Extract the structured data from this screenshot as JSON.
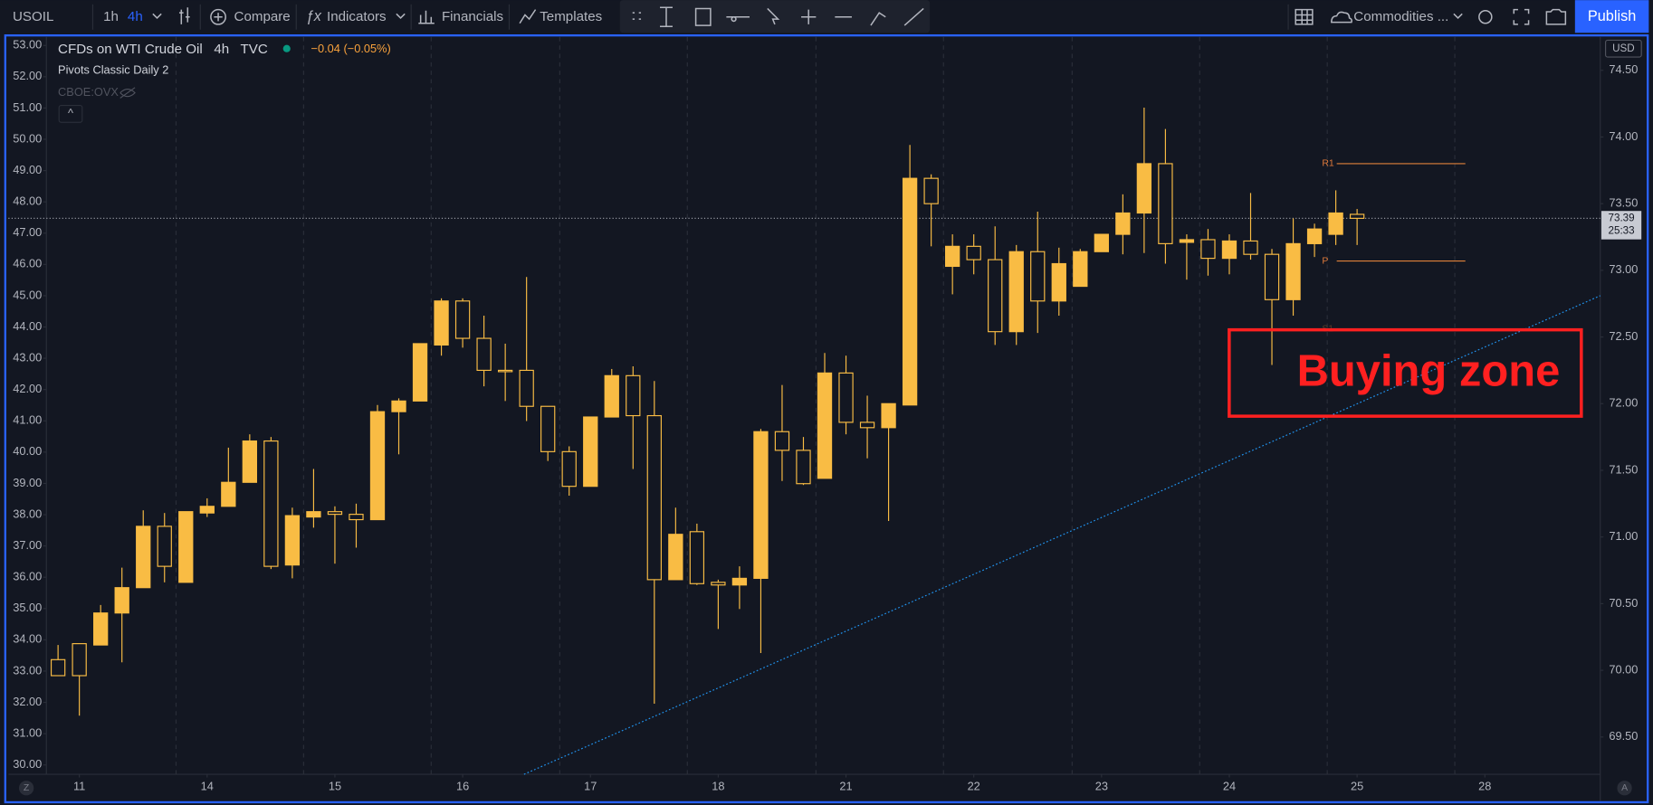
{
  "toolbar": {
    "symbol": "USOIL",
    "intervals": [
      "1h",
      "4h"
    ],
    "buttons": [
      "Compare",
      "Indicators",
      "Financials",
      "Templates"
    ],
    "watchlist": "Commodities ...",
    "publish": "Publish"
  },
  "controls": {
    "left_axis_button": "Z",
    "right_axis_button": "A",
    "currency": "USD",
    "collapse": "^"
  },
  "chart_data": {
    "type": "candlestick",
    "title": "CFDs on WTI Crude Oil",
    "interval": "4h",
    "source": "TVC",
    "change": "−0.04 (−0.05%)",
    "indicator": "Pivots Classic Daily 2",
    "overlay_symbol": "CBOE:OVX",
    "color": "#f9bc44",
    "x": [
      0,
      1,
      2,
      3,
      4,
      5,
      6,
      7,
      8,
      9,
      10,
      11,
      12,
      13,
      14,
      15,
      16,
      17,
      18,
      19,
      20,
      21,
      22,
      23,
      24,
      25,
      26,
      27,
      28,
      29,
      30,
      31,
      32,
      33,
      34,
      35,
      36,
      37,
      38,
      39,
      40,
      41,
      42,
      43,
      44,
      45,
      46,
      47,
      48,
      49,
      50,
      51,
      52,
      53,
      54,
      55,
      56,
      57,
      58,
      59,
      60,
      61
    ],
    "open": [
      70.08,
      70.2,
      70.19,
      70.43,
      70.62,
      71.08,
      70.66,
      71.18,
      71.23,
      71.41,
      71.72,
      70.79,
      71.15,
      71.19,
      71.17,
      71.13,
      71.94,
      72.02,
      72.44,
      72.77,
      72.49,
      72.25,
      72.25,
      71.98,
      71.64,
      71.38,
      71.9,
      72.21,
      71.91,
      70.68,
      71.04,
      70.66,
      70.64,
      70.69,
      71.79,
      71.65,
      71.44,
      72.23,
      71.86,
      71.82,
      71.99,
      73.69,
      73.03,
      73.18,
      73.08,
      72.54,
      73.14,
      72.77,
      72.88,
      73.14,
      73.27,
      73.43,
      73.8,
      73.21,
      73.23,
      73.09,
      73.22,
      73.12,
      72.78,
      73.2,
      73.27,
      73.42
    ],
    "high": [
      70.19,
      70.2,
      70.49,
      70.77,
      71.2,
      71.18,
      71.19,
      71.29,
      71.67,
      71.77,
      71.75,
      71.22,
      71.51,
      71.23,
      71.25,
      71.99,
      72.04,
      72.45,
      72.79,
      72.79,
      72.66,
      72.45,
      72.95,
      71.98,
      71.68,
      71.9,
      72.26,
      72.28,
      72.17,
      71.22,
      71.1,
      70.68,
      70.78,
      71.81,
      72.14,
      71.75,
      72.38,
      72.36,
      72.06,
      72.0,
      73.94,
      73.72,
      73.27,
      73.27,
      73.33,
      73.19,
      73.44,
      73.17,
      73.16,
      73.27,
      73.57,
      74.22,
      74.06,
      73.27,
      73.31,
      73.27,
      73.58,
      73.16,
      73.39,
      73.35,
      73.6,
      73.46
    ],
    "low": [
      69.96,
      69.66,
      70.19,
      70.06,
      70.62,
      70.66,
      70.66,
      71.15,
      71.23,
      71.41,
      70.76,
      70.69,
      71.07,
      70.8,
      70.92,
      71.13,
      71.62,
      72.02,
      72.36,
      72.42,
      72.13,
      72.02,
      71.87,
      71.57,
      71.31,
      71.38,
      71.9,
      71.51,
      69.75,
      70.68,
      70.64,
      70.31,
      70.46,
      70.13,
      71.42,
      71.39,
      71.44,
      71.77,
      71.59,
      71.12,
      71.99,
      73.18,
      72.82,
      72.97,
      72.44,
      72.44,
      72.53,
      72.66,
      72.88,
      73.14,
      73.12,
      73.13,
      73.05,
      72.93,
      72.96,
      72.97,
      73.08,
      72.29,
      72.66,
      73.1,
      73.19,
      73.19
    ],
    "close": [
      69.96,
      69.96,
      70.43,
      70.62,
      71.08,
      70.78,
      71.19,
      71.23,
      71.41,
      71.72,
      70.78,
      71.16,
      71.19,
      71.17,
      71.13,
      71.94,
      72.02,
      72.45,
      72.77,
      72.49,
      72.25,
      72.24,
      71.98,
      71.64,
      71.38,
      71.9,
      72.21,
      71.91,
      70.68,
      71.02,
      70.65,
      70.64,
      70.69,
      71.79,
      71.65,
      71.4,
      72.23,
      71.86,
      71.82,
      72.0,
      73.69,
      73.5,
      73.18,
      73.08,
      72.54,
      73.14,
      72.77,
      73.05,
      73.14,
      73.27,
      73.43,
      73.8,
      73.2,
      73.23,
      73.09,
      73.22,
      73.12,
      72.78,
      73.2,
      73.31,
      73.43,
      73.39
    ],
    "xlim": [
      -2.33,
      72.42
    ],
    "xticks": [
      {
        "value": 1,
        "label": "11"
      },
      {
        "value": 7,
        "label": "14"
      },
      {
        "value": 13,
        "label": "15"
      },
      {
        "value": 19,
        "label": "16"
      },
      {
        "value": 25,
        "label": "17"
      },
      {
        "value": 31,
        "label": "18"
      },
      {
        "value": 37,
        "label": "21"
      },
      {
        "value": 43,
        "label": "22"
      },
      {
        "value": 49,
        "label": "23"
      },
      {
        "value": 55,
        "label": "24"
      },
      {
        "value": 61,
        "label": "25"
      },
      {
        "value": 67,
        "label": "28"
      }
    ],
    "ylim": [
      69.22,
      74.75
    ],
    "yticks": [
      {
        "value": 74.5,
        "label": "74.50"
      },
      {
        "value": 74,
        "label": "74.00"
      },
      {
        "value": 73.5,
        "label": "73.50"
      },
      {
        "value": 73,
        "label": "73.00"
      },
      {
        "value": 72.5,
        "label": "72.50"
      },
      {
        "value": 72,
        "label": "72.00"
      },
      {
        "value": 71.5,
        "label": "71.50"
      },
      {
        "value": 71,
        "label": "71.00"
      },
      {
        "value": 70.5,
        "label": "70.50"
      },
      {
        "value": 70,
        "label": "70.00"
      },
      {
        "value": 69.5,
        "label": "69.50"
      }
    ],
    "y2lim": [
      29.7,
      53.27
    ],
    "y2ticks": [
      {
        "value": 53,
        "label": "53.00"
      },
      {
        "value": 52,
        "label": "52.00"
      },
      {
        "value": 51,
        "label": "51.00"
      },
      {
        "value": 50,
        "label": "50.00"
      },
      {
        "value": 49,
        "label": "49.00"
      },
      {
        "value": 48,
        "label": "48.00"
      },
      {
        "value": 47,
        "label": "47.00"
      },
      {
        "value": 46,
        "label": "46.00"
      },
      {
        "value": 45,
        "label": "45.00"
      },
      {
        "value": 44,
        "label": "44.00"
      },
      {
        "value": 43,
        "label": "43.00"
      },
      {
        "value": 42,
        "label": "42.00"
      },
      {
        "value": 41,
        "label": "41.00"
      },
      {
        "value": 40,
        "label": "40.00"
      },
      {
        "value": 39,
        "label": "39.00"
      },
      {
        "value": 38,
        "label": "38.00"
      },
      {
        "value": 37,
        "label": "37.00"
      },
      {
        "value": 36,
        "label": "36.00"
      },
      {
        "value": 35,
        "label": "35.00"
      },
      {
        "value": 34,
        "label": "34.00"
      },
      {
        "value": 33,
        "label": "33.00"
      },
      {
        "value": 32,
        "label": "32.00"
      },
      {
        "value": 31,
        "label": "31.00"
      },
      {
        "value": 30,
        "label": "30.00"
      }
    ],
    "last_price": 73.39,
    "countdown": "25:33",
    "pivots": [
      {
        "label": "R1",
        "value": 73.8
      },
      {
        "label": "P",
        "value": 73.07
      },
      {
        "label": "S1",
        "value": 72.56
      }
    ],
    "trendline": {
      "x": [
        21.88,
        72.42
      ],
      "y": [
        69.22,
        72.81
      ]
    },
    "annotation": "Buying zone",
    "grid": false
  }
}
